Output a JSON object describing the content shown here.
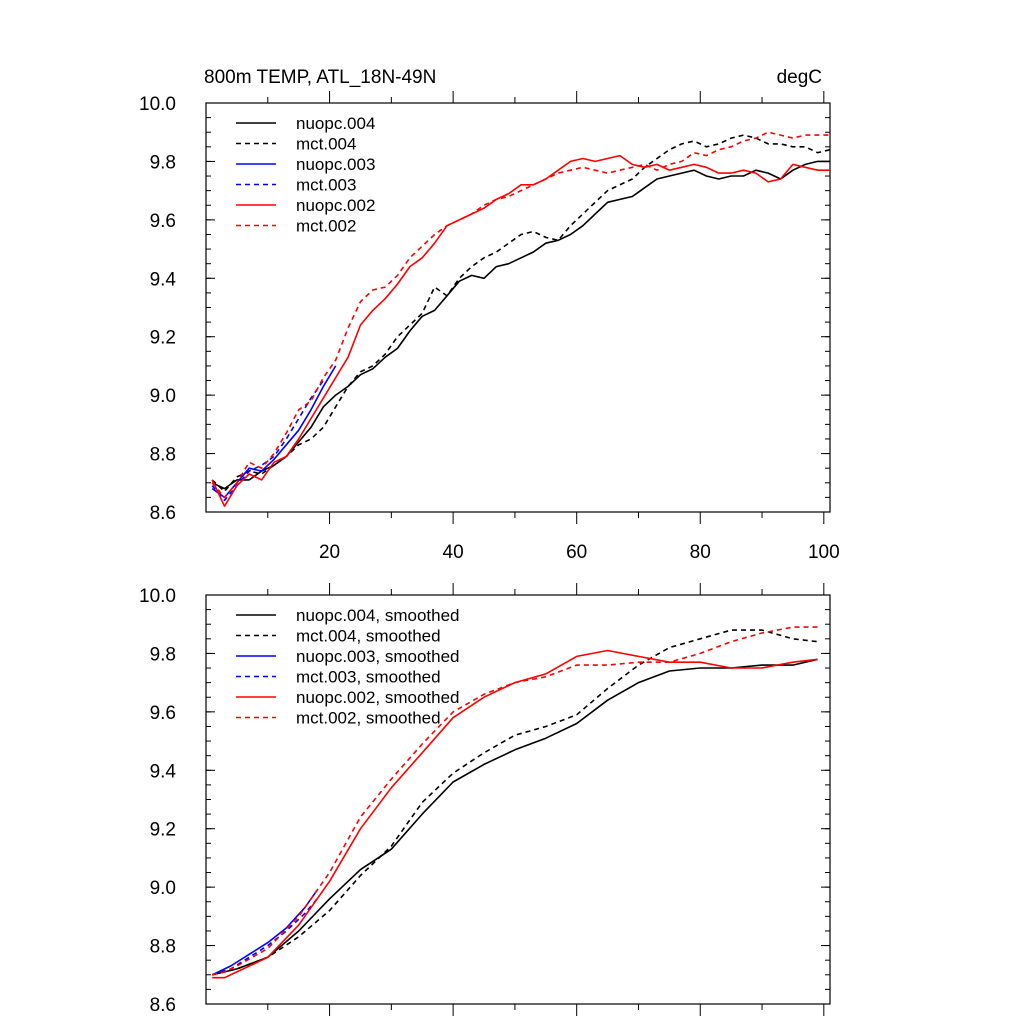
{
  "chart_data": [
    {
      "type": "line",
      "title": "800m TEMP, ATL_18N-49N",
      "units": "degC",
      "xlim": [
        0,
        101
      ],
      "ylim": [
        8.6,
        10.0
      ],
      "xticks": [
        20,
        40,
        60,
        80,
        100
      ],
      "yticks": [
        8.6,
        8.8,
        9.0,
        9.2,
        9.4,
        9.6,
        9.8,
        10.0
      ],
      "ytick_labels": [
        "8.6",
        "8.8",
        "9.0",
        "9.2",
        "9.4",
        "9.6",
        "9.8",
        "10.0"
      ],
      "show_xtick_labels": true,
      "grid": false,
      "legend_position": "top-left",
      "series": [
        {
          "name": "nuopc.004",
          "color": "#000000",
          "dashed": false,
          "x": [
            1,
            3,
            5,
            7,
            9,
            11,
            13,
            15,
            17,
            19,
            21,
            23,
            25,
            27,
            29,
            31,
            33,
            35,
            37,
            39,
            41,
            43,
            45,
            47,
            49,
            51,
            53,
            55,
            57,
            59,
            61,
            63,
            65,
            67,
            69,
            71,
            73,
            75,
            77,
            79,
            81,
            83,
            85,
            87,
            89,
            91,
            93,
            95,
            97,
            99,
            101
          ],
          "y": [
            8.7,
            8.68,
            8.71,
            8.71,
            8.74,
            8.76,
            8.79,
            8.84,
            8.89,
            8.96,
            9.0,
            9.03,
            9.07,
            9.09,
            9.13,
            9.16,
            9.22,
            9.27,
            9.29,
            9.34,
            9.39,
            9.41,
            9.4,
            9.44,
            9.45,
            9.47,
            9.49,
            9.52,
            9.53,
            9.55,
            9.58,
            9.62,
            9.66,
            9.67,
            9.68,
            9.71,
            9.74,
            9.75,
            9.76,
            9.77,
            9.75,
            9.74,
            9.75,
            9.75,
            9.77,
            9.76,
            9.74,
            9.77,
            9.79,
            9.8,
            9.8
          ]
        },
        {
          "name": "mct.004",
          "color": "#000000",
          "dashed": true,
          "x": [
            1,
            3,
            5,
            7,
            9,
            11,
            13,
            15,
            17,
            19,
            21,
            23,
            25,
            27,
            29,
            31,
            33,
            35,
            37,
            39,
            41,
            43,
            45,
            47,
            49,
            51,
            53,
            55,
            57,
            59,
            61,
            63,
            65,
            67,
            69,
            71,
            73,
            75,
            77,
            79,
            81,
            83,
            85,
            87,
            89,
            91,
            93,
            95,
            97,
            99,
            101
          ],
          "y": [
            8.71,
            8.67,
            8.72,
            8.74,
            8.73,
            8.76,
            8.79,
            8.83,
            8.85,
            8.89,
            8.96,
            9.03,
            9.08,
            9.1,
            9.14,
            9.2,
            9.24,
            9.28,
            9.37,
            9.34,
            9.4,
            9.44,
            9.47,
            9.49,
            9.52,
            9.55,
            9.56,
            9.54,
            9.53,
            9.58,
            9.62,
            9.66,
            9.7,
            9.72,
            9.74,
            9.78,
            9.81,
            9.84,
            9.86,
            9.87,
            9.85,
            9.86,
            9.88,
            9.89,
            9.88,
            9.86,
            9.86,
            9.85,
            9.85,
            9.83,
            9.84
          ]
        },
        {
          "name": "nuopc.003",
          "color": "#0000ff",
          "dashed": false,
          "x": [
            1,
            3,
            5,
            7,
            9,
            11,
            13,
            15,
            17,
            19,
            21
          ],
          "y": [
            8.68,
            8.65,
            8.7,
            8.75,
            8.74,
            8.78,
            8.83,
            8.88,
            8.95,
            9.03,
            9.1
          ]
        },
        {
          "name": "mct.003",
          "color": "#0000ff",
          "dashed": true,
          "x": [
            1,
            3,
            5,
            7,
            9,
            11,
            13,
            15,
            17,
            19
          ],
          "y": [
            8.69,
            8.64,
            8.69,
            8.74,
            8.76,
            8.79,
            8.85,
            8.92,
            8.99,
            9.05
          ]
        },
        {
          "name": "nuopc.002",
          "color": "#ff0000",
          "dashed": false,
          "x": [
            1,
            3,
            5,
            7,
            9,
            11,
            13,
            15,
            17,
            19,
            21,
            23,
            25,
            27,
            29,
            31,
            33,
            35,
            37,
            39,
            41,
            43,
            45,
            47,
            49,
            51,
            53,
            55,
            57,
            59,
            61,
            63,
            65,
            67,
            69,
            71,
            73,
            75,
            77,
            79,
            81,
            83,
            85,
            87,
            89,
            91,
            93,
            95,
            97,
            99,
            101
          ],
          "y": [
            8.71,
            8.62,
            8.69,
            8.73,
            8.71,
            8.77,
            8.79,
            8.85,
            8.92,
            8.99,
            9.06,
            9.13,
            9.24,
            9.29,
            9.33,
            9.38,
            9.44,
            9.47,
            9.52,
            9.58,
            9.6,
            9.62,
            9.64,
            9.67,
            9.69,
            9.72,
            9.72,
            9.74,
            9.77,
            9.8,
            9.81,
            9.8,
            9.81,
            9.82,
            9.79,
            9.78,
            9.79,
            9.77,
            9.78,
            9.79,
            9.78,
            9.76,
            9.76,
            9.77,
            9.76,
            9.73,
            9.74,
            9.79,
            9.78,
            9.77,
            9.77
          ]
        },
        {
          "name": "mct.002",
          "color": "#ff0000",
          "dashed": true,
          "x": [
            1,
            3,
            5,
            7,
            9,
            11,
            13,
            15,
            17,
            19,
            21,
            23,
            25,
            27,
            29,
            31,
            33,
            35,
            37,
            39,
            41,
            43,
            45,
            47,
            49,
            51,
            53,
            55,
            57,
            59,
            61,
            63,
            65,
            67,
            69,
            71,
            73,
            75,
            77,
            79,
            81,
            83,
            85,
            87,
            89,
            91,
            93,
            95,
            97,
            99,
            101
          ],
          "y": [
            8.7,
            8.65,
            8.7,
            8.77,
            8.75,
            8.8,
            8.87,
            8.95,
            8.98,
            9.06,
            9.12,
            9.23,
            9.32,
            9.36,
            9.37,
            9.41,
            9.47,
            9.51,
            9.55,
            9.58,
            9.6,
            9.62,
            9.65,
            9.67,
            9.68,
            9.7,
            9.72,
            9.74,
            9.76,
            9.77,
            9.78,
            9.77,
            9.76,
            9.77,
            9.78,
            9.79,
            9.77,
            9.79,
            9.8,
            9.83,
            9.82,
            9.84,
            9.85,
            9.87,
            9.88,
            9.9,
            9.89,
            9.88,
            9.89,
            9.89,
            9.89
          ]
        }
      ]
    },
    {
      "type": "line",
      "title": "",
      "units": "",
      "xlim": [
        0,
        101
      ],
      "ylim": [
        8.6,
        10.0
      ],
      "xticks": [
        20,
        40,
        60,
        80,
        100
      ],
      "yticks": [
        8.6,
        8.8,
        9.0,
        9.2,
        9.4,
        9.6,
        9.8,
        10.0
      ],
      "ytick_labels": [
        "8.6",
        "8.8",
        "9.0",
        "9.2",
        "9.4",
        "9.6",
        "9.8",
        "10.0"
      ],
      "show_xtick_labels": false,
      "grid": false,
      "legend_position": "top-left",
      "series": [
        {
          "name": "nuopc.004, smoothed",
          "color": "#000000",
          "dashed": false,
          "x": [
            1,
            5,
            10,
            15,
            20,
            25,
            30,
            35,
            40,
            45,
            50,
            55,
            60,
            65,
            70,
            75,
            80,
            85,
            90,
            95,
            99
          ],
          "y": [
            8.7,
            8.72,
            8.76,
            8.85,
            8.96,
            9.06,
            9.13,
            9.25,
            9.36,
            9.42,
            9.47,
            9.51,
            9.56,
            9.64,
            9.7,
            9.74,
            9.75,
            9.75,
            9.76,
            9.76,
            9.78
          ]
        },
        {
          "name": "mct.004, smoothed",
          "color": "#000000",
          "dashed": true,
          "x": [
            1,
            5,
            10,
            15,
            20,
            25,
            30,
            35,
            40,
            45,
            50,
            55,
            60,
            65,
            70,
            75,
            80,
            85,
            90,
            95,
            99
          ],
          "y": [
            8.7,
            8.72,
            8.76,
            8.83,
            8.92,
            9.04,
            9.14,
            9.29,
            9.39,
            9.46,
            9.52,
            9.55,
            9.59,
            9.68,
            9.76,
            9.82,
            9.85,
            9.88,
            9.88,
            9.85,
            9.84
          ]
        },
        {
          "name": "nuopc.003, smoothed",
          "color": "#0000ff",
          "dashed": false,
          "x": [
            1,
            4,
            7,
            10,
            13,
            16,
            18
          ],
          "y": [
            8.7,
            8.73,
            8.77,
            8.81,
            8.86,
            8.93,
            8.99
          ]
        },
        {
          "name": "mct.003, smoothed",
          "color": "#0000ff",
          "dashed": true,
          "x": [
            1,
            4,
            7,
            10,
            13,
            16,
            18
          ],
          "y": [
            8.7,
            8.72,
            8.76,
            8.8,
            8.85,
            8.91,
            8.96
          ]
        },
        {
          "name": "nuopc.002, smoothed",
          "color": "#ff0000",
          "dashed": false,
          "x": [
            1,
            3,
            5,
            10,
            15,
            20,
            25,
            30,
            35,
            40,
            45,
            50,
            55,
            60,
            65,
            70,
            75,
            80,
            85,
            90,
            95,
            99
          ],
          "y": [
            8.69,
            8.69,
            8.71,
            8.76,
            8.87,
            9.02,
            9.2,
            9.34,
            9.46,
            9.58,
            9.65,
            9.7,
            9.73,
            9.79,
            9.81,
            9.79,
            9.77,
            9.77,
            9.75,
            9.75,
            9.77,
            9.78
          ]
        },
        {
          "name": "mct.002, smoothed",
          "color": "#ff0000",
          "dashed": true,
          "x": [
            1,
            3,
            5,
            10,
            15,
            20,
            25,
            30,
            35,
            40,
            45,
            50,
            55,
            60,
            65,
            70,
            75,
            80,
            85,
            90,
            95,
            99
          ],
          "y": [
            8.7,
            8.71,
            8.73,
            8.79,
            8.9,
            9.05,
            9.24,
            9.37,
            9.49,
            9.6,
            9.66,
            9.7,
            9.72,
            9.76,
            9.76,
            9.77,
            9.77,
            9.8,
            9.84,
            9.87,
            9.89,
            9.89
          ]
        }
      ]
    }
  ]
}
